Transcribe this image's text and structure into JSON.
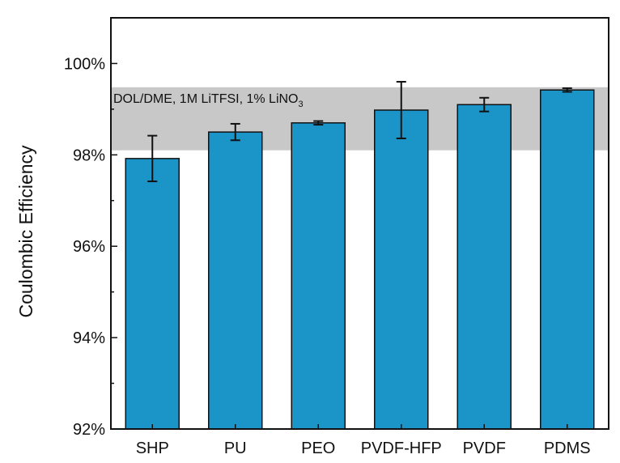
{
  "chart_data": {
    "type": "bar",
    "title": "",
    "xlabel": "",
    "ylabel": "Coulombic Efficiency",
    "ylim": [
      92,
      101
    ],
    "yticks": [
      92,
      94,
      96,
      98,
      100
    ],
    "ytick_labels": [
      "92%",
      "94%",
      "96%",
      "98%",
      "100%"
    ],
    "categories": [
      "SHP",
      "PU",
      "PEO",
      "PVDF-HFP",
      "PVDF",
      "PDMS"
    ],
    "values": [
      97.92,
      98.5,
      98.7,
      98.98,
      99.1,
      99.42
    ],
    "errors": [
      0.5,
      0.18,
      0.04,
      0.62,
      0.15,
      0.04
    ],
    "grid": false,
    "bar_color": "#1b94c8",
    "band": {
      "range": [
        98.1,
        99.48
      ],
      "color": "#c8c8c8",
      "label_main": "DOL/DME, 1M LiTFSI, 1% LiNO",
      "label_sub": "3"
    }
  }
}
